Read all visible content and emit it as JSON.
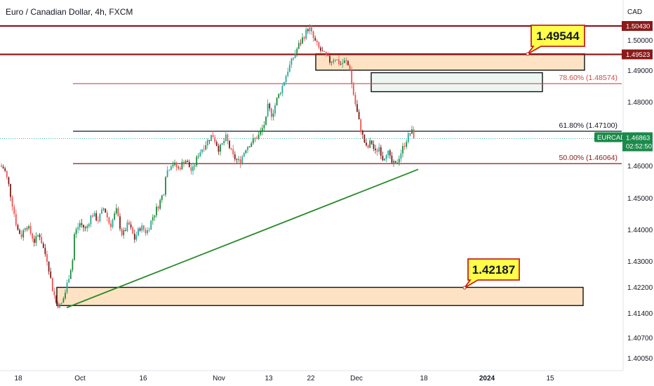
{
  "chart_title": "Euro / Canadian Dollar, 4h, FXCM",
  "currency": "CAD",
  "colors": {
    "up": "#26a69a",
    "up_dark": "#1b8a3b",
    "down": "#ef5350",
    "down_dark": "#7b1b1b",
    "dark_red": "#8b1a1a",
    "fib_red": "#d04a4a",
    "zone_fill": "#fde3c3",
    "box_fill": "#ecf7f3",
    "trendline": "#2a8a2a",
    "callout_fill": "#ffff4a",
    "callout_border": "#c8201c",
    "price_tag": "#1b8a4a"
  },
  "chart_data": {
    "type": "candlestick",
    "symbol": "EURCAD",
    "timeframe": "4h",
    "x_ticks": [
      "18",
      "Oct",
      "16",
      "Nov",
      "13",
      "22",
      "Dec",
      "18",
      "2024",
      "15"
    ],
    "y_ticks": [
      "1.50000",
      "1.49000",
      "1.48000",
      "1.47000",
      "1.46000",
      "1.45000",
      "1.44000",
      "1.43000",
      "1.42200",
      "1.41400",
      "1.40700",
      "1.40050"
    ],
    "ylim": [
      1.4005,
      1.5075
    ],
    "price_path": [
      [
        1.46,
        1.459,
        1.454,
        1.447,
        1.44,
        1.438,
        1.442,
        1.439,
        1.436,
        1.439,
        1.434,
        1.43,
        1.422,
        1.417,
        1.416,
        1.42,
        1.426,
        1.432
      ],
      [
        1.438,
        1.442,
        1.44,
        1.445,
        1.443,
        1.447,
        1.441,
        1.446,
        1.438,
        1.442,
        1.437,
        1.441,
        1.439,
        1.444,
        1.448,
        1.453
      ],
      [
        1.457,
        1.461,
        1.459,
        1.462,
        1.458,
        1.464,
        1.467,
        1.47,
        1.465,
        1.469,
        1.463,
        1.461,
        1.466,
        1.468,
        1.47,
        1.475
      ],
      [
        1.479,
        1.476,
        1.481,
        1.485,
        1.49,
        1.494,
        1.498,
        1.501,
        1.504,
        1.5,
        1.497,
        1.495,
        1.493,
        1.494,
        1.492,
        1.493,
        1.49
      ],
      [
        1.487,
        1.48,
        1.474,
        1.469,
        1.465,
        1.468,
        1.464,
        1.466,
        1.462,
        1.465,
        1.461,
        1.46,
        1.463,
        1.466,
        1.469,
        1.471,
        1.4686
      ]
    ],
    "levels": [
      {
        "price": 1.5043,
        "label": "1.50430"
      },
      {
        "price": 1.49523,
        "label": "1.49523"
      },
      {
        "price": 1.48574,
        "label": "78.60% (1.48574)"
      },
      {
        "price": 1.471,
        "label": "61.80% (1.47100)"
      },
      {
        "price": 1.46064,
        "label": "50.00% (1.46064)"
      }
    ],
    "zones": [
      {
        "top": 1.4954,
        "bottom": 1.49
      },
      {
        "top": 1.4892,
        "bottom": 1.4832
      },
      {
        "top": 1.4219,
        "bottom": 1.4163
      }
    ],
    "trendline": {
      "from": 1.4163,
      "to": 1.4595
    },
    "callouts": [
      "1.49544",
      "1.42187"
    ],
    "current_price": {
      "symbol": "EURCAD",
      "price": "1.46863",
      "countdown": "02:52:50"
    }
  }
}
